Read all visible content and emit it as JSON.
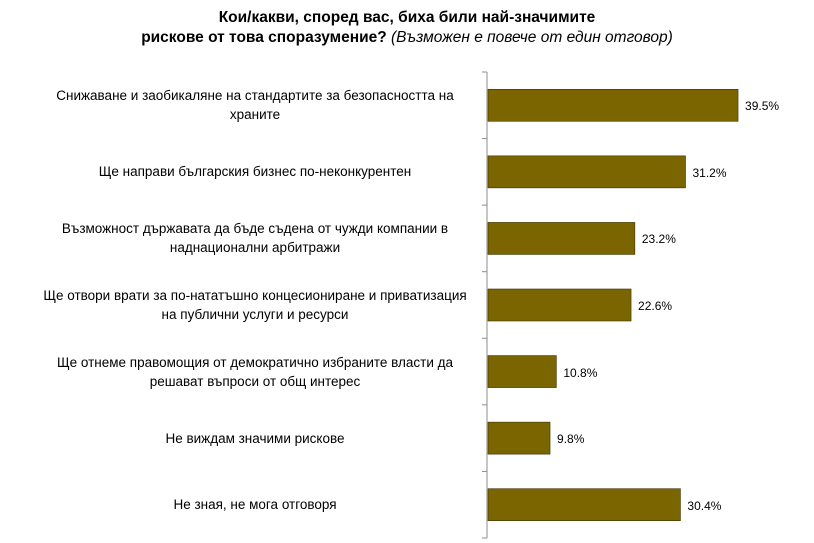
{
  "chart_data": {
    "type": "bar",
    "orientation": "horizontal",
    "title": "Кои/какви, според вас, биха били най-значимите",
    "title_line2": "рискове от това споразумение?",
    "subtitle": "(Възможен е повече от един отговор)",
    "categories": [
      [
        "Снижаване и заобикаляне на стандартите за безопасността на",
        "храните"
      ],
      [
        "Ще направи българския бизнес по-неконкурентен"
      ],
      [
        "Възможност държавата да бъде съдена от чужди компании в",
        "наднационални арбитражи"
      ],
      [
        "Ще отвори врати за по-нататъшно концесиониране и приватизация",
        "на публични услуги и ресурси"
      ],
      [
        "Ще отнеме правомощия от демократично избраните власти да",
        "решават въпроси от общ интерес"
      ],
      [
        "Не виждам значими рискове"
      ],
      [
        "Не зная, не мога отговоря"
      ]
    ],
    "values": [
      39.5,
      31.2,
      23.2,
      22.6,
      10.8,
      9.8,
      30.4
    ],
    "value_labels": [
      "39.5%",
      "31.2%",
      "23.2%",
      "22.6%",
      "10.8%",
      "9.8%",
      "30.4%"
    ],
    "bar_color": "#7a6500",
    "axis_color": "#8c8c8c",
    "xlim": [
      0,
      40
    ]
  }
}
